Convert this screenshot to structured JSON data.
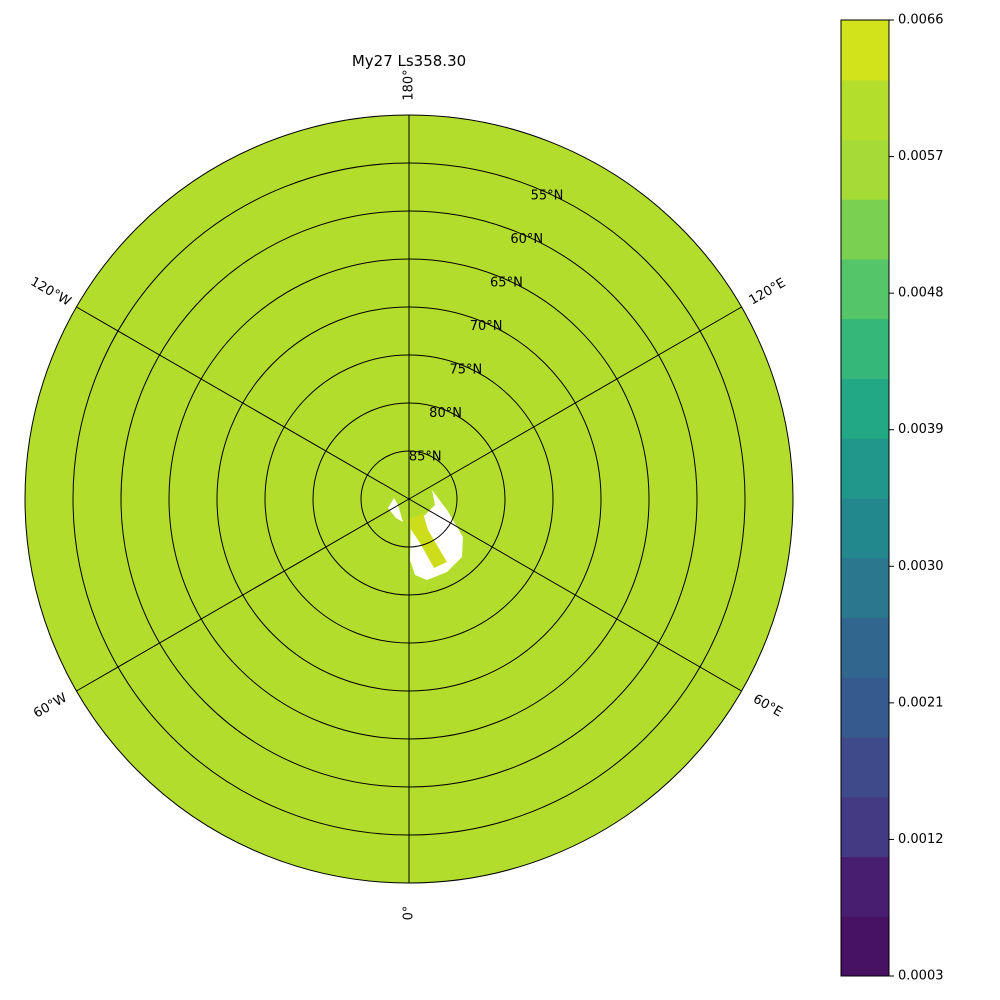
{
  "title": "My27 Ls358.30",
  "map": {
    "projection": "north-polar-stereographic",
    "fill_color": "#b2dd2c",
    "accent_fill_color": "#cddc1b",
    "missing_color": "#ffffff",
    "parallels": [
      {
        "lat": 85,
        "label": "85°N"
      },
      {
        "lat": 80,
        "label": "80°N"
      },
      {
        "lat": 75,
        "label": "75°N"
      },
      {
        "lat": 70,
        "label": "70°N"
      },
      {
        "lat": 65,
        "label": "65°N"
      },
      {
        "lat": 60,
        "label": "60°N"
      },
      {
        "lat": 55,
        "label": "55°N"
      }
    ],
    "meridians": [
      {
        "lon": 0,
        "label": "0°"
      },
      {
        "lon": 60,
        "label": "60°E"
      },
      {
        "lon": 120,
        "label": "120°E"
      },
      {
        "lon": 180,
        "label": "180°"
      },
      {
        "lon": -120,
        "label": "120°W"
      },
      {
        "lon": -60,
        "label": "60°W"
      }
    ]
  },
  "colorbar": {
    "min": 0.0003,
    "max": 0.0066,
    "levels": 14,
    "ticks": [
      "0.0003",
      "0.0012",
      "0.0021",
      "0.0030",
      "0.0039",
      "0.0048",
      "0.0057",
      "0.0066"
    ],
    "colors": [
      "#471164",
      "#481f70",
      "#443983",
      "#3f4a8a",
      "#375a8c",
      "#31678e",
      "#2a788e",
      "#23888e",
      "#1f988b",
      "#22a884",
      "#35b779",
      "#54c568",
      "#7ad151",
      "#a5db36",
      "#b4de2c",
      "#d2e21b"
    ]
  }
}
